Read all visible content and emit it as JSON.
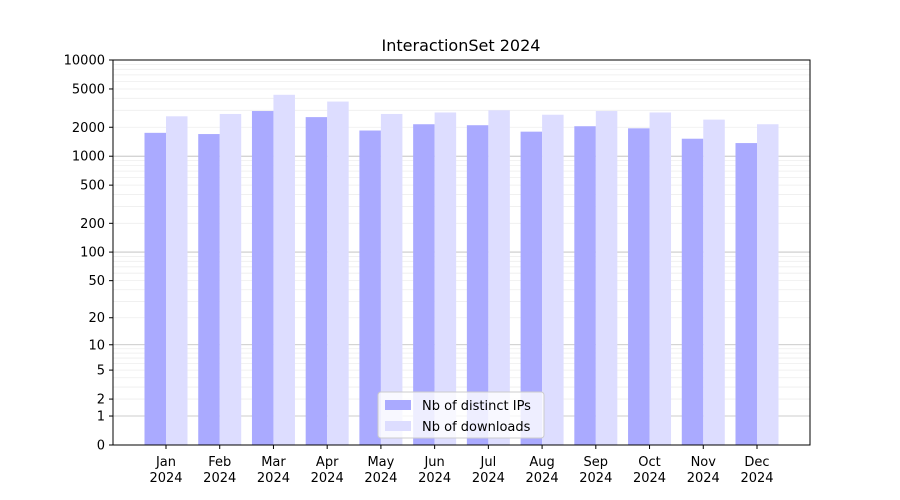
{
  "chart_data": {
    "type": "bar",
    "title": "InteractionSet 2024",
    "xlabel": "",
    "ylabel": "",
    "y_scale": "symlog",
    "ylim": [
      0,
      10000
    ],
    "y_ticks": [
      "0",
      "1",
      "2",
      "5",
      "10",
      "20",
      "50",
      "100",
      "200",
      "500",
      "1000",
      "2000",
      "5000",
      "10000"
    ],
    "categories": [
      {
        "month": "Jan",
        "year": "2024"
      },
      {
        "month": "Feb",
        "year": "2024"
      },
      {
        "month": "Mar",
        "year": "2024"
      },
      {
        "month": "Apr",
        "year": "2024"
      },
      {
        "month": "May",
        "year": "2024"
      },
      {
        "month": "Jun",
        "year": "2024"
      },
      {
        "month": "Jul",
        "year": "2024"
      },
      {
        "month": "Aug",
        "year": "2024"
      },
      {
        "month": "Sep",
        "year": "2024"
      },
      {
        "month": "Oct",
        "year": "2024"
      },
      {
        "month": "Nov",
        "year": "2024"
      },
      {
        "month": "Dec",
        "year": "2024"
      }
    ],
    "series": [
      {
        "name": "Nb of distinct IPs",
        "color": "#aaaaff",
        "values": [
          1750,
          1700,
          2950,
          2550,
          1850,
          2150,
          2100,
          1800,
          2050,
          1950,
          1520,
          1370
        ]
      },
      {
        "name": "Nb of downloads",
        "color": "#ddddff",
        "values": [
          2600,
          2750,
          4350,
          3700,
          2750,
          2850,
          3000,
          2700,
          2950,
          2850,
          2400,
          2150
        ]
      }
    ],
    "grid": true,
    "legend_position": "bottom-center"
  }
}
